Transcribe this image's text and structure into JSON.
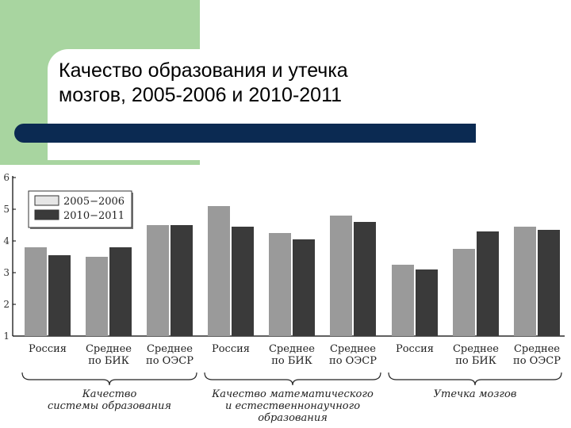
{
  "slide": {
    "title_line1": "Качество образования и утечка",
    "title_line2": "мозгов, 2005-2006 и 2010-2011"
  },
  "colors": {
    "green_block": "#a8d5a0",
    "divider_bar": "#0b2a52",
    "series_2005": "#9a9a9a",
    "series_2010": "#3a3a3a"
  },
  "chart_data": {
    "type": "bar",
    "ylim": [
      1,
      6
    ],
    "yticks": [
      1,
      2,
      3,
      4,
      5,
      6
    ],
    "grid": false,
    "legend_position": "top-left",
    "categories": [
      [
        "Россия"
      ],
      [
        "Среднее",
        "по БИК"
      ],
      [
        "Среднее",
        "по ОЭСР"
      ],
      [
        "Россия"
      ],
      [
        "Среднее",
        "по БИК"
      ],
      [
        "Среднее",
        "по ОЭСР"
      ],
      [
        "Россия"
      ],
      [
        "Среднее",
        "по БИК"
      ],
      [
        "Среднее",
        "по ОЭСР"
      ]
    ],
    "series": [
      {
        "name": "2005−2006",
        "values": [
          3.8,
          3.5,
          4.5,
          5.1,
          4.25,
          4.8,
          3.25,
          3.75,
          4.45
        ]
      },
      {
        "name": "2010−2011",
        "values": [
          3.55,
          3.8,
          4.5,
          4.45,
          4.05,
          4.6,
          3.1,
          4.3,
          4.35
        ]
      }
    ],
    "groups": [
      {
        "label": [
          "Качество",
          "системы образования"
        ],
        "categories": [
          0,
          1,
          2
        ]
      },
      {
        "label": [
          "Качество математического",
          "и естественнонаучного",
          "образования"
        ],
        "categories": [
          3,
          4,
          5
        ]
      },
      {
        "label": [
          "Утечка мозгов"
        ],
        "categories": [
          6,
          7,
          8
        ]
      }
    ]
  }
}
